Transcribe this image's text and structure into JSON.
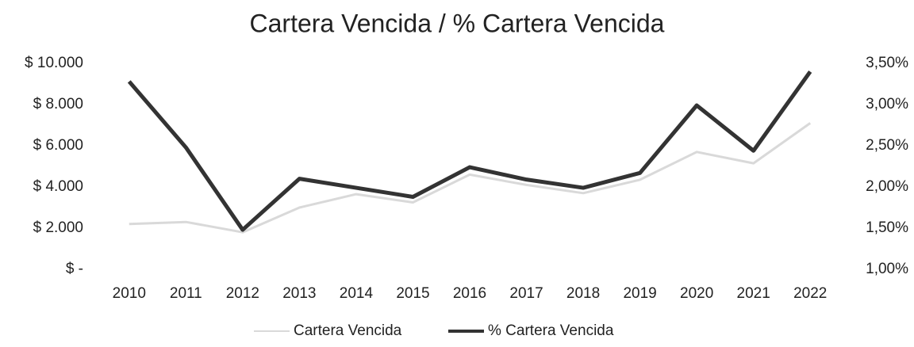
{
  "chart_data": {
    "type": "line",
    "title": "Cartera Vencida / % Cartera Vencida",
    "categories": [
      "2010",
      "2011",
      "2012",
      "2013",
      "2014",
      "2015",
      "2016",
      "2017",
      "2018",
      "2019",
      "2020",
      "2021",
      "2022"
    ],
    "series": [
      {
        "name": "Cartera Vencida",
        "color": "#d9d9d9",
        "values": [
          2200,
          2300,
          1800,
          3000,
          3650,
          3250,
          4600,
          4100,
          3700,
          4350,
          5700,
          5150,
          7100
        ]
      },
      {
        "name": "% Cartera Vencida",
        "color": "#333333",
        "axis": "y2",
        "values": [
          3.28,
          2.48,
          1.48,
          2.1,
          1.99,
          1.88,
          2.24,
          2.09,
          1.99,
          2.17,
          2.99,
          2.44,
          3.4
        ]
      }
    ],
    "ylim": [
      0,
      10000
    ],
    "yticks": [
      {
        "value": 0,
        "label": "$ -"
      },
      {
        "value": 2000,
        "label": "$ 2.000"
      },
      {
        "value": 4000,
        "label": "$ 4.000"
      },
      {
        "value": 6000,
        "label": "$ 6.000"
      },
      {
        "value": 8000,
        "label": "$ 8.000"
      },
      {
        "value": 10000,
        "label": "$ 10.000"
      }
    ],
    "y2lim": [
      1.0,
      3.5
    ],
    "y2ticks": [
      {
        "value": 1.0,
        "label": "1,00%"
      },
      {
        "value": 1.5,
        "label": "1,50%"
      },
      {
        "value": 2.0,
        "label": "2,00%"
      },
      {
        "value": 2.5,
        "label": "2,50%"
      },
      {
        "value": 3.0,
        "label": "3,00%"
      },
      {
        "value": 3.5,
        "label": "3,50%"
      }
    ],
    "grid": false,
    "legend": "bottom"
  }
}
